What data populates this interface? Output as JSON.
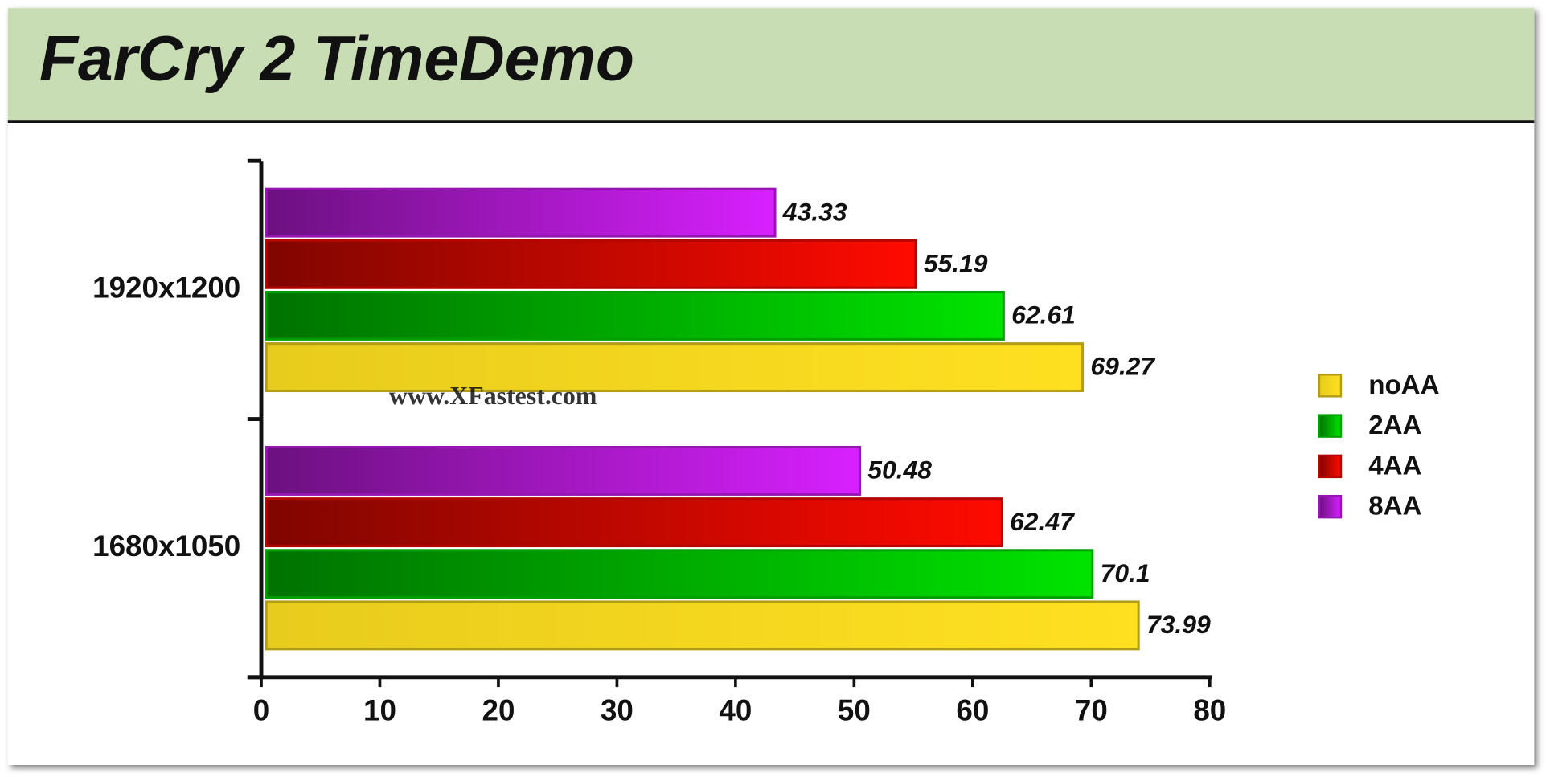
{
  "chart_data": {
    "type": "hbar",
    "title": "FarCry 2 TimeDemo",
    "watermark": "www.XFastest.com",
    "categories": [
      "1920x1200",
      "1680x1050"
    ],
    "series": [
      {
        "name": "noAA",
        "color": "#ffe020",
        "values": [
          69.27,
          73.99
        ]
      },
      {
        "name": "2AA",
        "color": "#00e400",
        "values": [
          62.61,
          70.1
        ]
      },
      {
        "name": "4AA",
        "color": "#ff0a00",
        "values": [
          55.19,
          62.47
        ]
      },
      {
        "name": "8AA",
        "color": "#d820ff",
        "values": [
          43.33,
          50.48
        ]
      }
    ],
    "xlim": [
      0,
      80
    ],
    "xticks": [
      0,
      10,
      20,
      30,
      40,
      50,
      60,
      70,
      80
    ],
    "legend": "right"
  }
}
